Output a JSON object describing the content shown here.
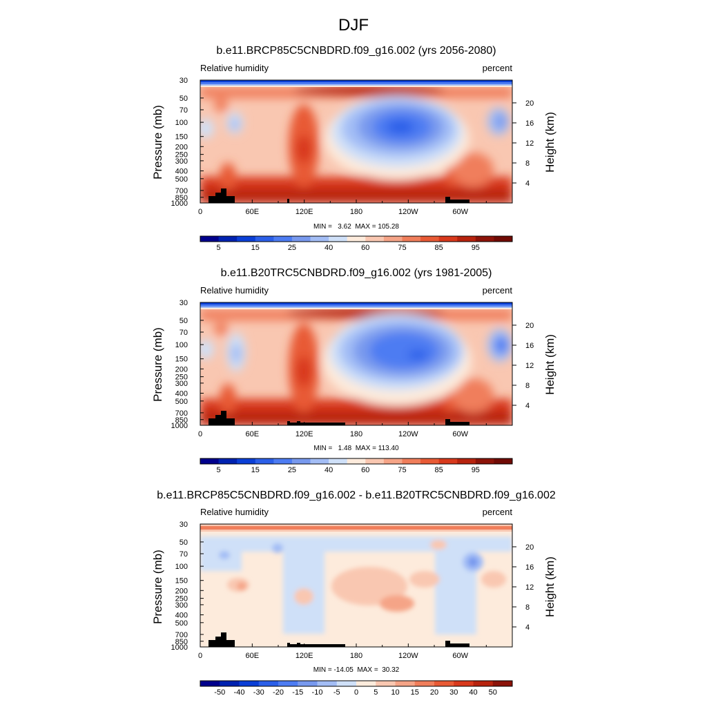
{
  "figure": {
    "title": "DJF"
  },
  "chart_data": [
    {
      "type": "heatmap",
      "title": "b.e11.BRCP85C5CNBDRD.f09_g16.002 (yrs 2056-2080)",
      "left_string": "Relative humidity",
      "right_string": "percent",
      "ylabel": "Pressure (mb)",
      "ylabel_right": "Height (km)",
      "x_ticks": [
        "0",
        "60E",
        "120E",
        "180",
        "120W",
        "60W"
      ],
      "x_tick_values": [
        0,
        60,
        120,
        180,
        240,
        300
      ],
      "xlim": [
        0,
        360
      ],
      "y_ticks": [
        "30",
        "50",
        "70",
        "100",
        "150",
        "200",
        "250",
        "300",
        "400",
        "500",
        "700",
        "850",
        "1000"
      ],
      "y_tick_values": [
        30,
        50,
        70,
        100,
        150,
        200,
        250,
        300,
        400,
        500,
        700,
        850,
        1000
      ],
      "ylim": [
        1000,
        30
      ],
      "y_scale": "log",
      "height_ticks": [
        "20",
        "16",
        "12",
        "8",
        "4"
      ],
      "height_tick_values": [
        20,
        16,
        12,
        8,
        4
      ],
      "stats": "MIN =   3.62  MAX = 105.28",
      "colorbar_levels": [
        "5",
        "10",
        "15",
        "20",
        "25",
        "30",
        "40",
        "50",
        "60",
        "70",
        "75",
        "80",
        "85",
        "90",
        "95",
        "100"
      ],
      "colorbar_labels": [
        "5",
        "15",
        "25",
        "40",
        "60",
        "75",
        "85",
        "95"
      ],
      "colorbar_colors": [
        "#00008c",
        "#0022b0",
        "#0b3fd6",
        "#2b5fe8",
        "#4d7cf2",
        "#7899ee",
        "#a3bdf5",
        "#cfe0f8",
        "#fdebdc",
        "#f9c7b1",
        "#f5a487",
        "#f07e5b",
        "#e85a35",
        "#d8391c",
        "#b7230e",
        "#8c1309",
        "#700b05"
      ]
    },
    {
      "type": "heatmap",
      "title": "b.e11.B20TRC5CNBDRD.f09_g16.002 (yrs 1981-2005)",
      "left_string": "Relative humidity",
      "right_string": "percent",
      "ylabel": "Pressure (mb)",
      "ylabel_right": "Height (km)",
      "x_ticks": [
        "0",
        "60E",
        "120E",
        "180",
        "120W",
        "60W"
      ],
      "x_tick_values": [
        0,
        60,
        120,
        180,
        240,
        300
      ],
      "xlim": [
        0,
        360
      ],
      "y_ticks": [
        "30",
        "50",
        "70",
        "100",
        "150",
        "200",
        "250",
        "300",
        "400",
        "500",
        "700",
        "850",
        "1000"
      ],
      "y_tick_values": [
        30,
        50,
        70,
        100,
        150,
        200,
        250,
        300,
        400,
        500,
        700,
        850,
        1000
      ],
      "ylim": [
        1000,
        30
      ],
      "y_scale": "log",
      "height_ticks": [
        "20",
        "16",
        "12",
        "8",
        "4"
      ],
      "height_tick_values": [
        20,
        16,
        12,
        8,
        4
      ],
      "stats": "MIN =   1.48  MAX = 113.40",
      "colorbar_levels": [
        "5",
        "10",
        "15",
        "20",
        "25",
        "30",
        "40",
        "50",
        "60",
        "70",
        "75",
        "80",
        "85",
        "90",
        "95",
        "100"
      ],
      "colorbar_labels": [
        "5",
        "15",
        "25",
        "40",
        "60",
        "75",
        "85",
        "95"
      ],
      "colorbar_colors": [
        "#00008c",
        "#0022b0",
        "#0b3fd6",
        "#2b5fe8",
        "#4d7cf2",
        "#7899ee",
        "#a3bdf5",
        "#cfe0f8",
        "#fdebdc",
        "#f9c7b1",
        "#f5a487",
        "#f07e5b",
        "#e85a35",
        "#d8391c",
        "#b7230e",
        "#8c1309",
        "#700b05"
      ]
    },
    {
      "type": "heatmap",
      "title": "b.e11.BRCP85C5CNBDRD.f09_g16.002 - b.e11.B20TRC5CNBDRD.f09_g16.002",
      "left_string": "Relative humidity",
      "right_string": "percent",
      "ylabel": "Pressure (mb)",
      "ylabel_right": "Height (km)",
      "x_ticks": [
        "0",
        "60E",
        "120E",
        "180",
        "120W",
        "60W"
      ],
      "x_tick_values": [
        0,
        60,
        120,
        180,
        240,
        300
      ],
      "xlim": [
        0,
        360
      ],
      "y_ticks": [
        "30",
        "50",
        "70",
        "100",
        "150",
        "200",
        "250",
        "300",
        "400",
        "500",
        "700",
        "850",
        "1000"
      ],
      "y_tick_values": [
        30,
        50,
        70,
        100,
        150,
        200,
        250,
        300,
        400,
        500,
        700,
        850,
        1000
      ],
      "ylim": [
        1000,
        30
      ],
      "y_scale": "log",
      "height_ticks": [
        "20",
        "16",
        "12",
        "8",
        "4"
      ],
      "height_tick_values": [
        20,
        16,
        12,
        8,
        4
      ],
      "stats": "MIN = -14.05  MAX =  30.32",
      "colorbar_levels": [
        "-50",
        "-40",
        "-30",
        "-20",
        "-15",
        "-10",
        "-5",
        "0",
        "5",
        "10",
        "15",
        "20",
        "30",
        "40",
        "50"
      ],
      "colorbar_labels": [
        "-50",
        "-40",
        "-30",
        "-20",
        "-15",
        "-10",
        "-5",
        "0",
        "5",
        "10",
        "15",
        "20",
        "30",
        "40",
        "50"
      ],
      "colorbar_colors": [
        "#00008c",
        "#0022b0",
        "#0b3fd6",
        "#2b5fe8",
        "#4d7cf2",
        "#7899ee",
        "#a3bdf5",
        "#cfe0f8",
        "#fdebdc",
        "#f9c7b1",
        "#f5a487",
        "#f07e5b",
        "#e85a35",
        "#d8391c",
        "#b7230e",
        "#8c1309"
      ]
    }
  ]
}
